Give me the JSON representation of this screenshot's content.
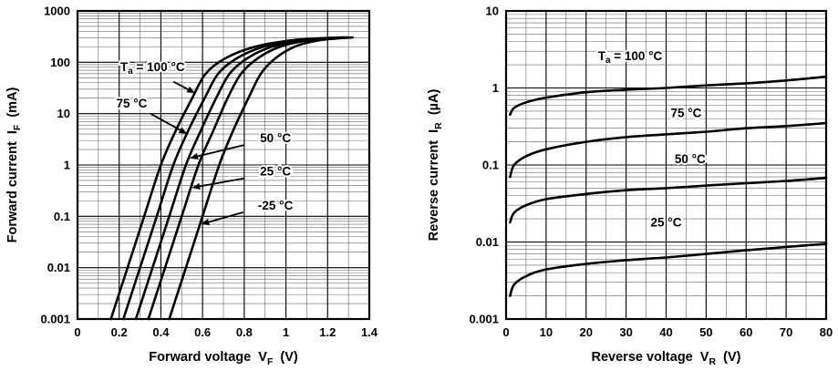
{
  "page": {
    "background": "#ffffff",
    "ink": "#000000"
  },
  "chart_data": [
    {
      "name": "forward-characteristics",
      "type": "line",
      "title": "",
      "xlabel": "Forward voltage VF (V)",
      "ylabel": "Forward current IF (mA)",
      "xlim": [
        0,
        1.4
      ],
      "ylim": [
        0.001,
        1000
      ],
      "grid": "on",
      "x_axis": {
        "label": "Forward voltage",
        "symbol": "V",
        "sub": "F",
        "unit": "(V)",
        "min": 0,
        "max": 1.4,
        "scale": "linear",
        "minor_step": 0.1,
        "ticks": [
          {
            "v": 0,
            "label": "0"
          },
          {
            "v": 0.2,
            "label": "0.2"
          },
          {
            "v": 0.4,
            "label": "0.4"
          },
          {
            "v": 0.6,
            "label": "0.6"
          },
          {
            "v": 0.8,
            "label": "0.8"
          },
          {
            "v": 1,
            "label": "1"
          },
          {
            "v": 1.2,
            "label": "1.2"
          },
          {
            "v": 1.4,
            "label": "1.4"
          }
        ]
      },
      "y_axis": {
        "label": "Forward current",
        "symbol": "I",
        "sub": "F",
        "unit": "(mA)",
        "min": 0.001,
        "max": 1000,
        "scale": "log",
        "ticks": [
          {
            "v": 1000,
            "label": "1000"
          },
          {
            "v": 100,
            "label": "100"
          },
          {
            "v": 10,
            "label": "10"
          },
          {
            "v": 1,
            "label": "1"
          },
          {
            "v": 0.1,
            "label": "0.1"
          },
          {
            "v": 0.01,
            "label": "0.01"
          },
          {
            "v": 0.001,
            "label": "0.001"
          }
        ]
      },
      "series": [
        {
          "name": "Ta = 100 °C",
          "points": [
            [
              0.16,
              0.001
            ],
            [
              0.24,
              0.01
            ],
            [
              0.32,
              0.1
            ],
            [
              0.4,
              1
            ],
            [
              0.475,
              5
            ],
            [
              0.55,
              20
            ],
            [
              0.615,
              60
            ],
            [
              0.71,
              120
            ],
            [
              0.85,
              200
            ],
            [
              1.0,
              260
            ],
            [
              1.14,
              290
            ],
            [
              1.27,
              305
            ]
          ]
        },
        {
          "name": "75 °C",
          "points": [
            [
              0.22,
              0.001
            ],
            [
              0.3,
              0.01
            ],
            [
              0.38,
              0.1
            ],
            [
              0.46,
              1
            ],
            [
              0.535,
              5
            ],
            [
              0.61,
              20
            ],
            [
              0.675,
              60
            ],
            [
              0.765,
              120
            ],
            [
              0.89,
              200
            ],
            [
              1.03,
              260
            ],
            [
              1.16,
              290
            ],
            [
              1.28,
              305
            ]
          ]
        },
        {
          "name": "50 °C",
          "points": [
            [
              0.28,
              0.001
            ],
            [
              0.36,
              0.01
            ],
            [
              0.44,
              0.1
            ],
            [
              0.52,
              1
            ],
            [
              0.595,
              5
            ],
            [
              0.665,
              20
            ],
            [
              0.73,
              60
            ],
            [
              0.815,
              120
            ],
            [
              0.93,
              200
            ],
            [
              1.06,
              260
            ],
            [
              1.18,
              290
            ],
            [
              1.29,
              305
            ]
          ]
        },
        {
          "name": "25 °C",
          "points": [
            [
              0.34,
              0.001
            ],
            [
              0.42,
              0.01
            ],
            [
              0.5,
              0.1
            ],
            [
              0.58,
              1
            ],
            [
              0.655,
              5
            ],
            [
              0.72,
              20
            ],
            [
              0.785,
              60
            ],
            [
              0.865,
              120
            ],
            [
              0.97,
              200
            ],
            [
              1.09,
              260
            ],
            [
              1.21,
              290
            ],
            [
              1.3,
              305
            ]
          ]
        },
        {
          "name": "-25 °C",
          "points": [
            [
              0.44,
              0.001
            ],
            [
              0.52,
              0.01
            ],
            [
              0.6,
              0.1
            ],
            [
              0.68,
              1
            ],
            [
              0.75,
              5
            ],
            [
              0.82,
              20
            ],
            [
              0.88,
              60
            ],
            [
              0.95,
              120
            ],
            [
              1.04,
              200
            ],
            [
              1.14,
              260
            ],
            [
              1.24,
              290
            ],
            [
              1.32,
              305
            ]
          ]
        }
      ],
      "annotations": [
        {
          "label": {
            "pre": "T",
            "sub": "a",
            "rest": " = 100 °C"
          },
          "x": 0.36,
          "y": 68,
          "anchor": "middle",
          "arrow": {
            "x1": 0.46,
            "y1": 42,
            "x2": 0.565,
            "y2": 25
          }
        },
        {
          "label": {
            "rest": "75 °C"
          },
          "x": 0.26,
          "y": 13,
          "anchor": "middle",
          "arrow": {
            "x1": 0.35,
            "y1": 10,
            "x2": 0.527,
            "y2": 4
          }
        },
        {
          "label": {
            "rest": "50 °C"
          },
          "x": 0.95,
          "y": 2.8,
          "anchor": "middle",
          "arrow": {
            "x1": 0.8,
            "y1": 2.45,
            "x2": 0.538,
            "y2": 1.35
          }
        },
        {
          "label": {
            "rest": "25 °C"
          },
          "x": 0.95,
          "y": 0.62,
          "anchor": "middle",
          "arrow": {
            "x1": 0.8,
            "y1": 0.55,
            "x2": 0.548,
            "y2": 0.36
          }
        },
        {
          "label": {
            "rest": "-25 °C"
          },
          "x": 0.95,
          "y": 0.135,
          "anchor": "middle",
          "arrow": {
            "x1": 0.795,
            "y1": 0.12,
            "x2": 0.592,
            "y2": 0.07
          }
        }
      ]
    },
    {
      "name": "reverse-characteristics",
      "type": "line",
      "title": "",
      "xlabel": "Reverse voltage VR (V)",
      "ylabel": "Reverse current IR (µA)",
      "xlim": [
        0,
        80
      ],
      "ylim": [
        0.001,
        10
      ],
      "grid": "on",
      "x_axis": {
        "label": "Reverse voltage",
        "symbol": "V",
        "sub": "R",
        "unit": "(V)",
        "min": 0,
        "max": 80,
        "scale": "linear",
        "minor_step": 5,
        "ticks": [
          {
            "v": 0,
            "label": "0"
          },
          {
            "v": 10,
            "label": "10"
          },
          {
            "v": 20,
            "label": "20"
          },
          {
            "v": 30,
            "label": "30"
          },
          {
            "v": 40,
            "label": "40"
          },
          {
            "v": 50,
            "label": "50"
          },
          {
            "v": 60,
            "label": "60"
          },
          {
            "v": 70,
            "label": "70"
          },
          {
            "v": 80,
            "label": "80"
          }
        ]
      },
      "y_axis": {
        "label": "Reverse current",
        "symbol": "I",
        "sub": "R",
        "unit": "(µA)",
        "min": 0.001,
        "max": 10,
        "scale": "log",
        "ticks": [
          {
            "v": 10,
            "label": "10"
          },
          {
            "v": 1,
            "label": "1"
          },
          {
            "v": 0.1,
            "label": "0.1"
          },
          {
            "v": 0.01,
            "label": "0.01"
          },
          {
            "v": 0.001,
            "label": "0.001"
          }
        ]
      },
      "series": [
        {
          "name": "Ta = 100 °C",
          "points": [
            [
              1,
              0.45
            ],
            [
              2,
              0.55
            ],
            [
              5,
              0.65
            ],
            [
              10,
              0.75
            ],
            [
              20,
              0.88
            ],
            [
              30,
              0.95
            ],
            [
              40,
              1.0
            ],
            [
              50,
              1.08
            ],
            [
              60,
              1.15
            ],
            [
              70,
              1.25
            ],
            [
              80,
              1.4
            ]
          ]
        },
        {
          "name": "75 °C",
          "points": [
            [
              1,
              0.07
            ],
            [
              2,
              0.1
            ],
            [
              5,
              0.13
            ],
            [
              10,
              0.16
            ],
            [
              20,
              0.2
            ],
            [
              30,
              0.23
            ],
            [
              40,
              0.25
            ],
            [
              50,
              0.27
            ],
            [
              60,
              0.3
            ],
            [
              70,
              0.32
            ],
            [
              80,
              0.35
            ]
          ]
        },
        {
          "name": "50 °C",
          "points": [
            [
              1,
              0.018
            ],
            [
              2,
              0.024
            ],
            [
              5,
              0.03
            ],
            [
              10,
              0.036
            ],
            [
              20,
              0.042
            ],
            [
              30,
              0.047
            ],
            [
              40,
              0.05
            ],
            [
              50,
              0.054
            ],
            [
              60,
              0.058
            ],
            [
              70,
              0.062
            ],
            [
              80,
              0.068
            ]
          ]
        },
        {
          "name": "25 °C",
          "points": [
            [
              1,
              0.002
            ],
            [
              2,
              0.0028
            ],
            [
              5,
              0.0036
            ],
            [
              10,
              0.0044
            ],
            [
              20,
              0.0052
            ],
            [
              30,
              0.0058
            ],
            [
              40,
              0.0063
            ],
            [
              50,
              0.007
            ],
            [
              60,
              0.0078
            ],
            [
              70,
              0.0086
            ],
            [
              80,
              0.0095
            ]
          ]
        }
      ],
      "annotations": [
        {
          "label": {
            "pre": "T",
            "sub": "a",
            "rest": " = 100 °C"
          },
          "x": 31,
          "y": 2.3,
          "anchor": "middle"
        },
        {
          "label": {
            "rest": "75 °C"
          },
          "x": 45,
          "y": 0.42,
          "anchor": "middle"
        },
        {
          "label": {
            "rest": "50 °C"
          },
          "x": 46,
          "y": 0.105,
          "anchor": "middle"
        },
        {
          "label": {
            "rest": "25 °C"
          },
          "x": 40,
          "y": 0.016,
          "anchor": "middle"
        }
      ]
    }
  ]
}
